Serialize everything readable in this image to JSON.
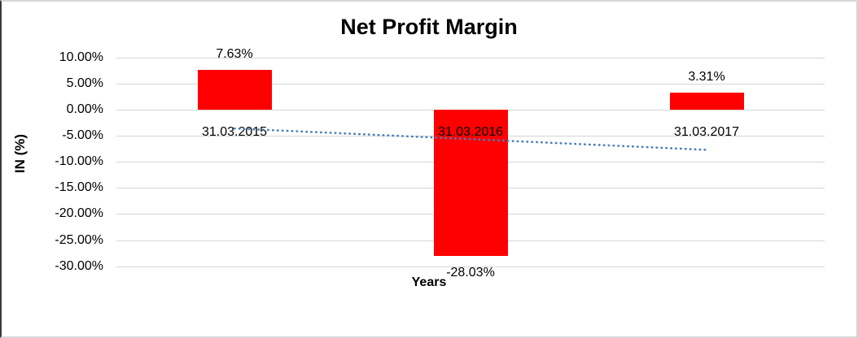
{
  "chart_data": {
    "type": "bar",
    "title": "Net Profit Margin",
    "xlabel": "Years",
    "ylabel": "IN (%)",
    "categories": [
      "31.03.2015",
      "31.03.2016",
      "31.03.2017"
    ],
    "values": [
      7.63,
      -28.03,
      3.31
    ],
    "value_labels": [
      "7.63%",
      "-28.03%",
      "3.31%"
    ],
    "y_ticks": [
      10,
      5,
      0,
      -5,
      -10,
      -15,
      -20,
      -25,
      -30
    ],
    "y_tick_labels": [
      "10.00%",
      "5.00%",
      "0.00%",
      "-5.00%",
      "-10.00%",
      "-15.00%",
      "-20.00%",
      "-25.00%",
      "-30.00%"
    ],
    "ylim": [
      -30,
      10
    ],
    "grid": true,
    "legend": false,
    "bar_color": "#ff0000",
    "gridline_color": "#d6d6d6",
    "trendline": {
      "type": "linear",
      "style": "dotted",
      "color": "#4a7ebb",
      "start_value": -3.6,
      "end_value": -7.7
    }
  }
}
